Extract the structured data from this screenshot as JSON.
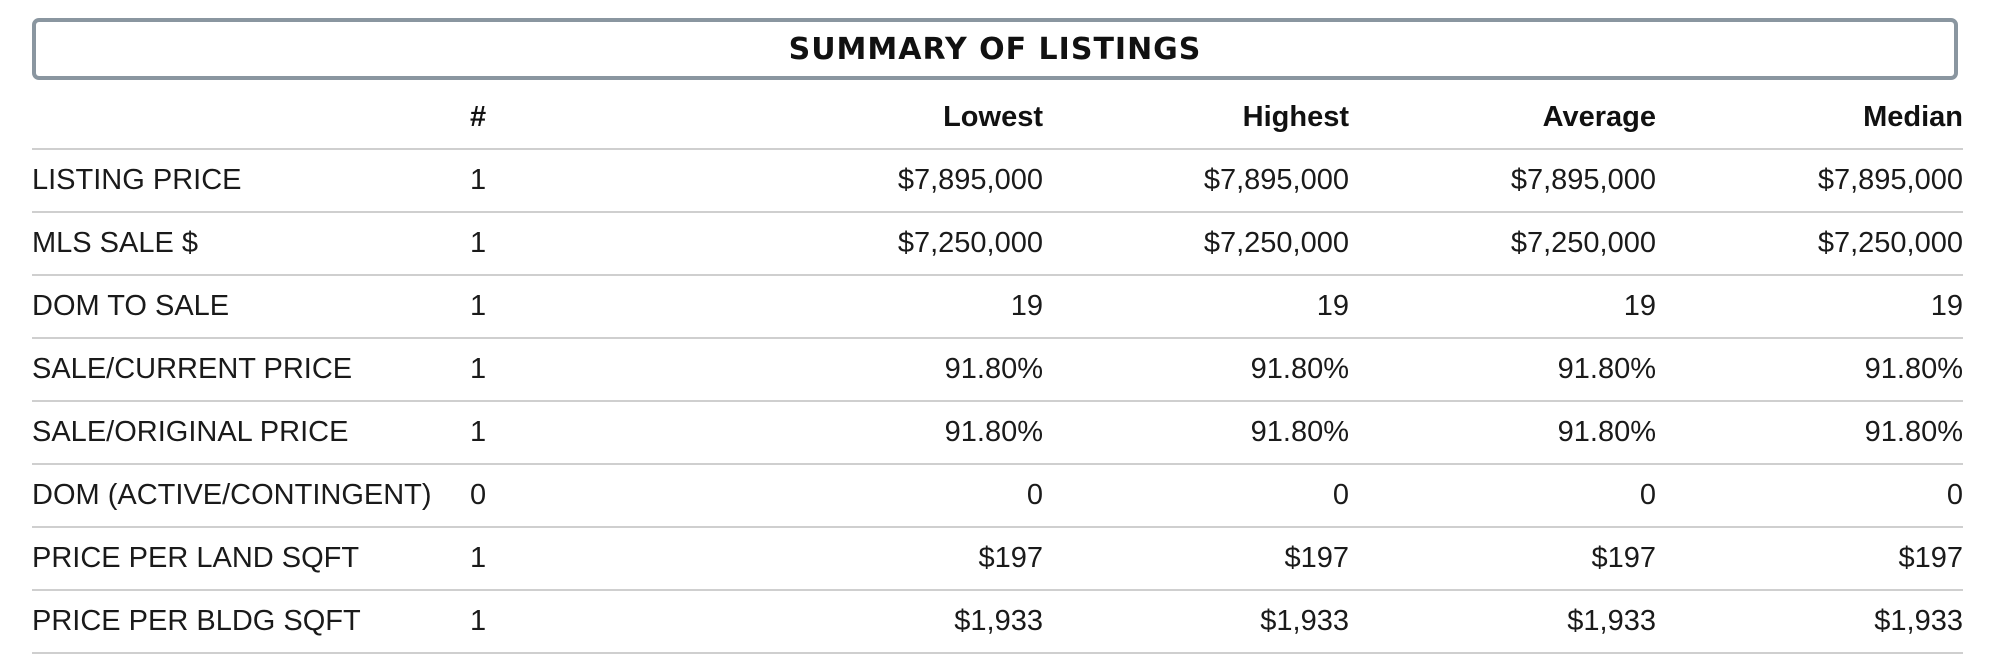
{
  "title": "SUMMARY OF LISTINGS",
  "headers": {
    "label": "",
    "count": "#",
    "lowest": "Lowest",
    "highest": "Highest",
    "average": "Average",
    "median": "Median"
  },
  "rows": [
    {
      "label": "LISTING PRICE",
      "count": "1",
      "lowest": "$7,895,000",
      "highest": "$7,895,000",
      "average": "$7,895,000",
      "median": "$7,895,000"
    },
    {
      "label": "MLS SALE $",
      "count": "1",
      "lowest": "$7,250,000",
      "highest": "$7,250,000",
      "average": "$7,250,000",
      "median": "$7,250,000"
    },
    {
      "label": "DOM TO SALE",
      "count": "1",
      "lowest": "19",
      "highest": "19",
      "average": "19",
      "median": "19"
    },
    {
      "label": "SALE/CURRENT PRICE",
      "count": "1",
      "lowest": "91.80%",
      "highest": "91.80%",
      "average": "91.80%",
      "median": "91.80%"
    },
    {
      "label": "SALE/ORIGINAL PRICE",
      "count": "1",
      "lowest": "91.80%",
      "highest": "91.80%",
      "average": "91.80%",
      "median": "91.80%"
    },
    {
      "label": "DOM (ACTIVE/CONTINGENT)",
      "count": "0",
      "lowest": "0",
      "highest": "0",
      "average": "0",
      "median": "0"
    },
    {
      "label": "PRICE PER LAND SQFT",
      "count": "1",
      "lowest": "$197",
      "highest": "$197",
      "average": "$197",
      "median": "$197"
    },
    {
      "label": "PRICE PER BLDG SQFT",
      "count": "1",
      "lowest": "$1,933",
      "highest": "$1,933",
      "average": "$1,933",
      "median": "$1,933"
    }
  ]
}
